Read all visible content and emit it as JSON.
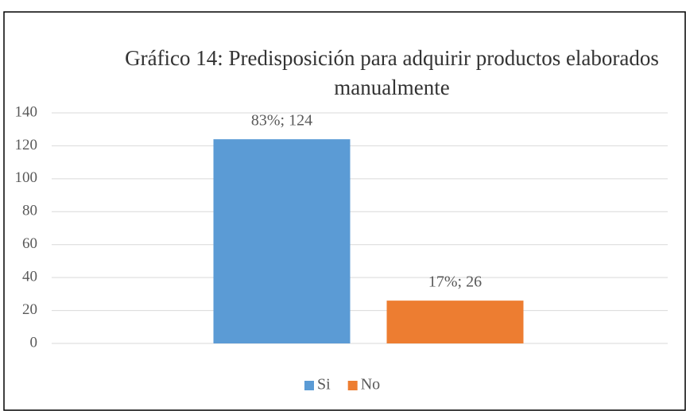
{
  "chart_data": {
    "type": "bar",
    "title": "Gráfico 14: Predisposición para adquirir productos elaborados manualmente",
    "categories": [
      null
    ],
    "series": [
      {
        "name": "Si",
        "color": "#5b9bd5",
        "values": [
          124
        ],
        "value_labels": [
          "83%; 124"
        ]
      },
      {
        "name": "No",
        "color": "#ed7d31",
        "values": [
          26
        ],
        "value_labels": [
          "17%; 26"
        ]
      }
    ],
    "ylim": [
      0,
      140
    ],
    "yticks": [
      0,
      20,
      40,
      60,
      80,
      100,
      120,
      140
    ],
    "grid": true,
    "legend": "bottom"
  }
}
